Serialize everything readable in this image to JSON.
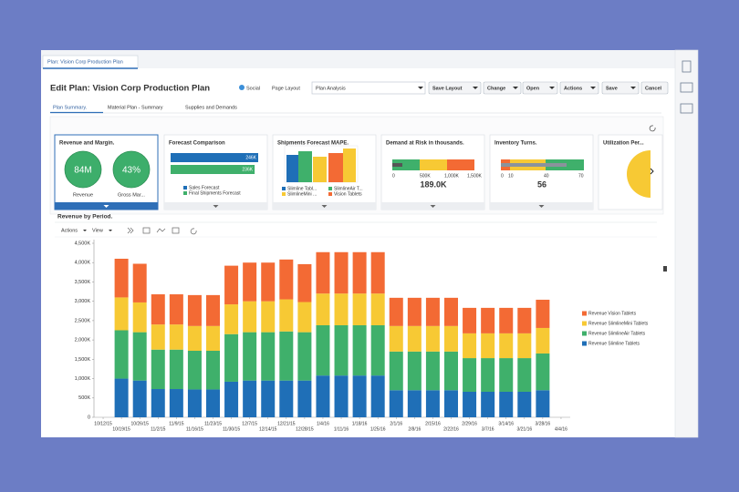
{
  "window_tab": "Plan: Vision Corp Production Plan",
  "header": {
    "title": "Edit Plan: Vision Corp Production Plan",
    "social": "Social",
    "page_layout_label": "Page Layout",
    "page_layout_value": "Plan Analysis",
    "buttons": [
      "Save Layout",
      "Change",
      "Open",
      "Actions",
      "Save",
      "Cancel"
    ]
  },
  "tabs": [
    "Plan Summary.",
    "Material Plan - Summary",
    "Supplies and Demands"
  ],
  "cards": [
    {
      "title": "Revenue and Margin.",
      "metrics": [
        {
          "value": "84M",
          "label": "Revenue"
        },
        {
          "value": "43%",
          "label": "Gross Mar..."
        }
      ]
    },
    {
      "title": "Forecast Comparison",
      "values": [
        246000,
        236000
      ],
      "value_labels": [
        "246K",
        "236K"
      ],
      "legend": [
        "Sales Forecast",
        "Final Shipments Forecast"
      ]
    },
    {
      "title": "Shipments Forecast MAPE.",
      "legend": [
        "Slimline Tabl...",
        "SlimlineAir T...",
        "SlimlineMini ...",
        "Vision Tablets"
      ]
    },
    {
      "title": "Demand at Risk in thousands.",
      "ticks": [
        "0",
        "500K",
        "1,000K",
        "1,500K"
      ],
      "value": "189.0K"
    },
    {
      "title": "Inventory Turns.",
      "ticks": [
        "0",
        "10",
        "40",
        "70"
      ],
      "value": "56"
    },
    {
      "title": "Utilization Per..."
    }
  ],
  "section_title": "Revenue by Period.",
  "chart_toolbar": [
    "Actions",
    "View"
  ],
  "chart_data": {
    "type": "stacked_bar",
    "categories": [
      "10/12/15",
      "10/19/15",
      "10/26/15",
      "11/2/15",
      "11/9/15",
      "11/16/15",
      "11/23/15",
      "11/30/15",
      "12/7/15",
      "12/14/15",
      "12/21/15",
      "12/28/15",
      "1/4/16",
      "1/11/16",
      "1/18/16",
      "1/25/16",
      "2/1/16",
      "2/8/16",
      "2/15/16",
      "2/22/16",
      "2/29/16",
      "3/7/16",
      "3/14/16",
      "3/21/16",
      "3/28/16",
      "4/4/16"
    ],
    "series": [
      {
        "name": "Revenue Slimline Tablets",
        "color": "#1f6fb7",
        "values": [
          null,
          1000000,
          950000,
          730000,
          730000,
          720000,
          720000,
          920000,
          950000,
          950000,
          950000,
          950000,
          1080000,
          1080000,
          1080000,
          1080000,
          700000,
          700000,
          700000,
          700000,
          660000,
          660000,
          660000,
          660000,
          700000,
          null
        ]
      },
      {
        "name": "Revenue SlimlineAir Tablets",
        "color": "#3fb06b",
        "values": [
          null,
          1250000,
          1250000,
          1020000,
          1020000,
          1000000,
          1000000,
          1230000,
          1250000,
          1250000,
          1270000,
          1250000,
          1300000,
          1300000,
          1300000,
          1300000,
          1000000,
          1000000,
          1000000,
          1000000,
          870000,
          870000,
          870000,
          870000,
          950000,
          null
        ]
      },
      {
        "name": "Revenue SlimlineMini Tablets",
        "color": "#f7c934",
        "values": [
          null,
          850000,
          770000,
          650000,
          650000,
          640000,
          640000,
          770000,
          800000,
          800000,
          830000,
          780000,
          820000,
          820000,
          820000,
          820000,
          660000,
          660000,
          660000,
          660000,
          640000,
          640000,
          640000,
          640000,
          660000,
          null
        ]
      },
      {
        "name": "Revenue Vision Tablets",
        "color": "#f36a34",
        "values": [
          null,
          1000000,
          1000000,
          780000,
          780000,
          800000,
          800000,
          1000000,
          1000000,
          1000000,
          1030000,
          980000,
          1070000,
          1070000,
          1070000,
          1070000,
          730000,
          730000,
          730000,
          730000,
          660000,
          660000,
          660000,
          660000,
          730000,
          null
        ]
      }
    ],
    "ylim": [
      0,
      4500000
    ],
    "yticks": [
      0,
      {
        "value": 500000,
        "label": "500K"
      },
      {
        "value": 1000000,
        "label": "1,000K"
      },
      {
        "value": 1500000,
        "label": "1,500K"
      },
      {
        "value": 2000000,
        "label": "2,000K"
      },
      {
        "value": 2500000,
        "label": "2,500K"
      },
      {
        "value": 3000000,
        "label": "3,000K"
      },
      {
        "value": 3500000,
        "label": "3,500K"
      },
      {
        "value": 4000000,
        "label": "4,000K"
      },
      {
        "value": 4500000,
        "label": "4,500K"
      }
    ],
    "grid": false,
    "legend": "right"
  }
}
